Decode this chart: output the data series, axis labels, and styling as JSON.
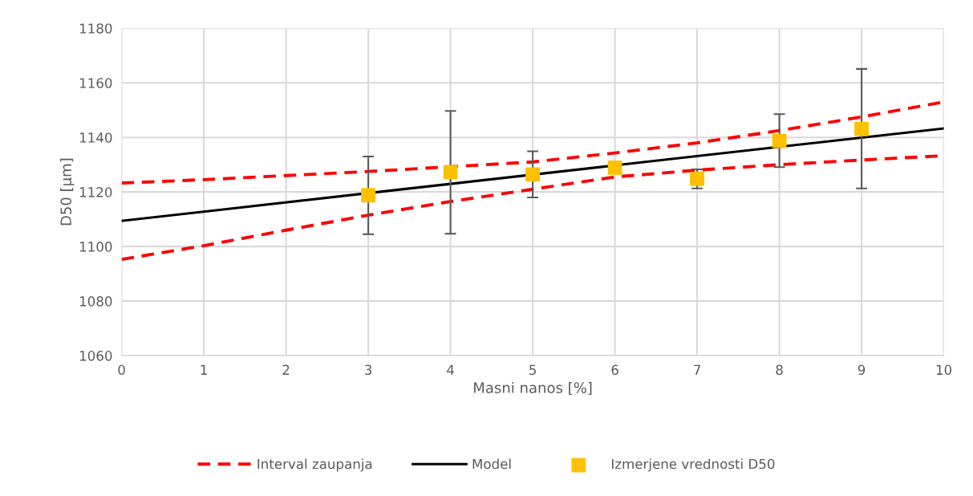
{
  "chart_data": {
    "type": "line",
    "xlabel": "Masni nanos [%]",
    "ylabel": "D50 [µm]",
    "xlim": [
      0,
      10
    ],
    "ylim": [
      1060,
      1180
    ],
    "xticks": [
      0,
      1,
      2,
      3,
      4,
      5,
      6,
      7,
      8,
      9,
      10
    ],
    "yticks": [
      1060,
      1080,
      1100,
      1120,
      1140,
      1160,
      1180
    ],
    "grid": true,
    "legend": "bottom",
    "series": [
      {
        "name": "Interval zaupanja",
        "line_style": "dashed",
        "marker": "none",
        "color": "#ff0000",
        "x": [
          0,
          1,
          2,
          3,
          5,
          6,
          7,
          8,
          9,
          10
        ],
        "values": [
          1123.3,
          1124.5,
          1126,
          1127.5,
          1131,
          1134.3,
          1138,
          1142.5,
          1147.5,
          1153
        ]
      },
      {
        "line_style": "dashed",
        "marker": "none",
        "color": "#ff0000",
        "x": [
          0,
          1,
          2,
          3,
          4,
          5,
          6,
          7,
          8,
          9,
          10
        ],
        "values": [
          1095.3,
          1100.3,
          1106,
          1111.5,
          1116.5,
          1121,
          1125.5,
          1128,
          1130,
          1131.7,
          1133.3
        ]
      },
      {
        "name": "Model",
        "line_style": "solid",
        "marker": "none",
        "color": "#000000",
        "x": [
          0,
          10
        ],
        "values": [
          1109.4,
          1143.3
        ]
      },
      {
        "name": "Izmerjene vrednosti D50",
        "type": "scatter",
        "marker": "square",
        "color": "#ffc000",
        "x": [
          3,
          4,
          5,
          6,
          7,
          8,
          9
        ],
        "values": [
          1118.8,
          1127.3,
          1126.4,
          1128.9,
          1124.8,
          1138.7,
          1143.1
        ],
        "errors": [
          [
            1104.5,
            1133
          ],
          [
            1104.7,
            1149.7
          ],
          [
            1118,
            1134.9
          ],
          null,
          [
            1121.3,
            1128.3
          ],
          [
            1129.1,
            1148.5
          ],
          [
            1121.3,
            1165.1
          ]
        ]
      }
    ]
  }
}
